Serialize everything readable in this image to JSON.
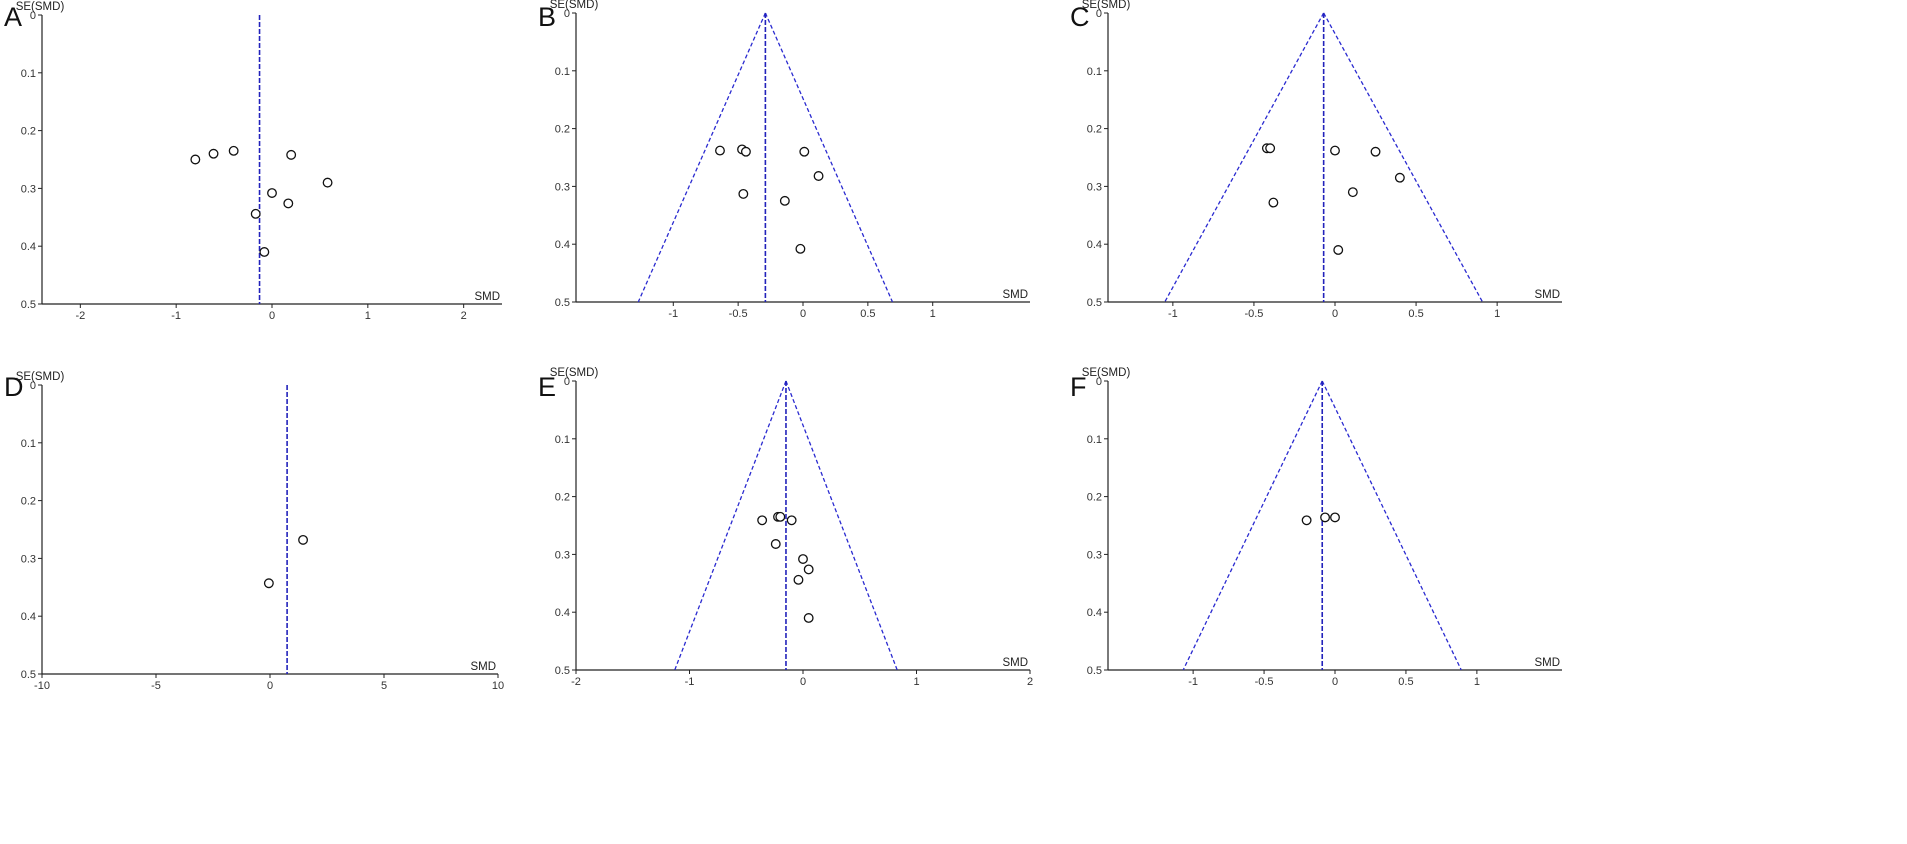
{
  "panel_labels": [
    "A",
    "B",
    "C",
    "D",
    "E",
    "F"
  ],
  "chart_data": [
    {
      "panel": "A",
      "type": "scatter",
      "xlabel": "SMD",
      "ylabel": "SE(SMD)",
      "xlim": [
        -2.4,
        2.4
      ],
      "ylim": [
        0,
        0.5
      ],
      "y_reversed": true,
      "xticks": [
        -2,
        -1,
        0,
        1,
        2
      ],
      "xtick_labels": [
        "-2",
        "-1",
        "0",
        "1",
        "2"
      ],
      "yticks": [
        0,
        0.1,
        0.2,
        0.3,
        0.4,
        0.5
      ],
      "ytick_labels": [
        "0",
        "0.1",
        "0.2",
        "0.3",
        "0.4",
        "0.5"
      ],
      "pooled_smd": -0.13,
      "funnel": false,
      "points": [
        {
          "x": -0.8,
          "y": 0.25
        },
        {
          "x": -0.61,
          "y": 0.24
        },
        {
          "x": -0.4,
          "y": 0.235
        },
        {
          "x": 0.2,
          "y": 0.242
        },
        {
          "x": 0.58,
          "y": 0.29
        },
        {
          "x": 0.0,
          "y": 0.308
        },
        {
          "x": 0.17,
          "y": 0.326
        },
        {
          "x": -0.17,
          "y": 0.344
        },
        {
          "x": -0.08,
          "y": 0.41
        }
      ],
      "grid": false
    },
    {
      "panel": "B",
      "type": "scatter",
      "xlabel": "SMD",
      "ylabel": "SE(SMD)",
      "xlim": [
        -1.75,
        1.75
      ],
      "ylim": [
        0,
        0.5
      ],
      "y_reversed": true,
      "xticks": [
        -1,
        -0.5,
        0,
        0.5,
        1
      ],
      "xtick_labels": [
        "-1",
        "-0.5",
        "0",
        "0.5",
        "1"
      ],
      "yticks": [
        0,
        0.1,
        0.2,
        0.3,
        0.4,
        0.5
      ],
      "ytick_labels": [
        "0",
        "0.1",
        "0.2",
        "0.3",
        "0.4",
        "0.5"
      ],
      "pooled_smd": -0.29,
      "funnel": true,
      "points": [
        {
          "x": -0.64,
          "y": 0.238
        },
        {
          "x": -0.47,
          "y": 0.236
        },
        {
          "x": -0.44,
          "y": 0.24
        },
        {
          "x": 0.01,
          "y": 0.24
        },
        {
          "x": 0.12,
          "y": 0.282
        },
        {
          "x": -0.46,
          "y": 0.313
        },
        {
          "x": -0.14,
          "y": 0.325
        },
        {
          "x": -0.02,
          "y": 0.408
        }
      ],
      "grid": false
    },
    {
      "panel": "C",
      "type": "scatter",
      "xlabel": "SMD",
      "ylabel": "SE(SMD)",
      "xlim": [
        -1.4,
        1.4
      ],
      "ylim": [
        0,
        0.5
      ],
      "y_reversed": true,
      "xticks": [
        -1,
        -0.5,
        0,
        0.5,
        1
      ],
      "xtick_labels": [
        "-1",
        "-0.5",
        "0",
        "0.5",
        "1"
      ],
      "yticks": [
        0,
        0.1,
        0.2,
        0.3,
        0.4,
        0.5
      ],
      "ytick_labels": [
        "0",
        "0.1",
        "0.2",
        "0.3",
        "0.4",
        "0.5"
      ],
      "pooled_smd": -0.07,
      "funnel": true,
      "points": [
        {
          "x": -0.42,
          "y": 0.234
        },
        {
          "x": -0.4,
          "y": 0.234
        },
        {
          "x": 0.0,
          "y": 0.238
        },
        {
          "x": 0.25,
          "y": 0.24
        },
        {
          "x": 0.4,
          "y": 0.285
        },
        {
          "x": 0.11,
          "y": 0.31
        },
        {
          "x": -0.38,
          "y": 0.328
        },
        {
          "x": 0.02,
          "y": 0.41
        }
      ],
      "grid": false
    },
    {
      "panel": "D",
      "type": "scatter",
      "xlabel": "SMD",
      "ylabel": "SE(SMD)",
      "xlim": [
        -10,
        10
      ],
      "ylim": [
        0,
        0.5
      ],
      "y_reversed": true,
      "xticks": [
        -10,
        -5,
        0,
        5,
        10
      ],
      "xtick_labels": [
        "-10",
        "-5",
        "0",
        "5",
        "10"
      ],
      "yticks": [
        0,
        0.1,
        0.2,
        0.3,
        0.4,
        0.5
      ],
      "ytick_labels": [
        "0",
        "0.1",
        "0.2",
        "0.3",
        "0.4",
        "0.5"
      ],
      "pooled_smd": 0.75,
      "funnel": false,
      "points": [
        {
          "x": 1.45,
          "y": 0.268
        },
        {
          "x": -0.05,
          "y": 0.343
        }
      ],
      "grid": false
    },
    {
      "panel": "E",
      "type": "scatter",
      "xlabel": "SMD",
      "ylabel": "SE(SMD)",
      "xlim": [
        -2,
        2
      ],
      "ylim": [
        0,
        0.5
      ],
      "y_reversed": true,
      "xticks": [
        -2,
        -1,
        0,
        1,
        2
      ],
      "xtick_labels": [
        "-2",
        "-1",
        "0",
        "1",
        "2"
      ],
      "yticks": [
        0,
        0.1,
        0.2,
        0.3,
        0.4,
        0.5
      ],
      "ytick_labels": [
        "0",
        "0.1",
        "0.2",
        "0.3",
        "0.4",
        "0.5"
      ],
      "pooled_smd": -0.15,
      "funnel": true,
      "points": [
        {
          "x": -0.36,
          "y": 0.241
        },
        {
          "x": -0.22,
          "y": 0.235
        },
        {
          "x": -0.2,
          "y": 0.235
        },
        {
          "x": -0.1,
          "y": 0.241
        },
        {
          "x": -0.24,
          "y": 0.282
        },
        {
          "x": 0.0,
          "y": 0.308
        },
        {
          "x": 0.05,
          "y": 0.326
        },
        {
          "x": -0.04,
          "y": 0.344
        },
        {
          "x": 0.05,
          "y": 0.41
        }
      ],
      "grid": false
    },
    {
      "panel": "F",
      "type": "scatter",
      "xlabel": "SMD",
      "ylabel": "SE(SMD)",
      "xlim": [
        -1.6,
        1.6
      ],
      "ylim": [
        0,
        0.5
      ],
      "y_reversed": true,
      "xticks": [
        -1,
        -0.5,
        0,
        0.5,
        1
      ],
      "xtick_labels": [
        "-1",
        "-0.5",
        "0",
        "0.5",
        "1"
      ],
      "yticks": [
        0,
        0.1,
        0.2,
        0.3,
        0.4,
        0.5
      ],
      "ytick_labels": [
        "0",
        "0.1",
        "0.2",
        "0.3",
        "0.4",
        "0.5"
      ],
      "pooled_smd": -0.09,
      "funnel": true,
      "points": [
        {
          "x": -0.2,
          "y": 0.241
        },
        {
          "x": -0.07,
          "y": 0.236
        },
        {
          "x": 0.0,
          "y": 0.236
        }
      ],
      "grid": false
    }
  ]
}
